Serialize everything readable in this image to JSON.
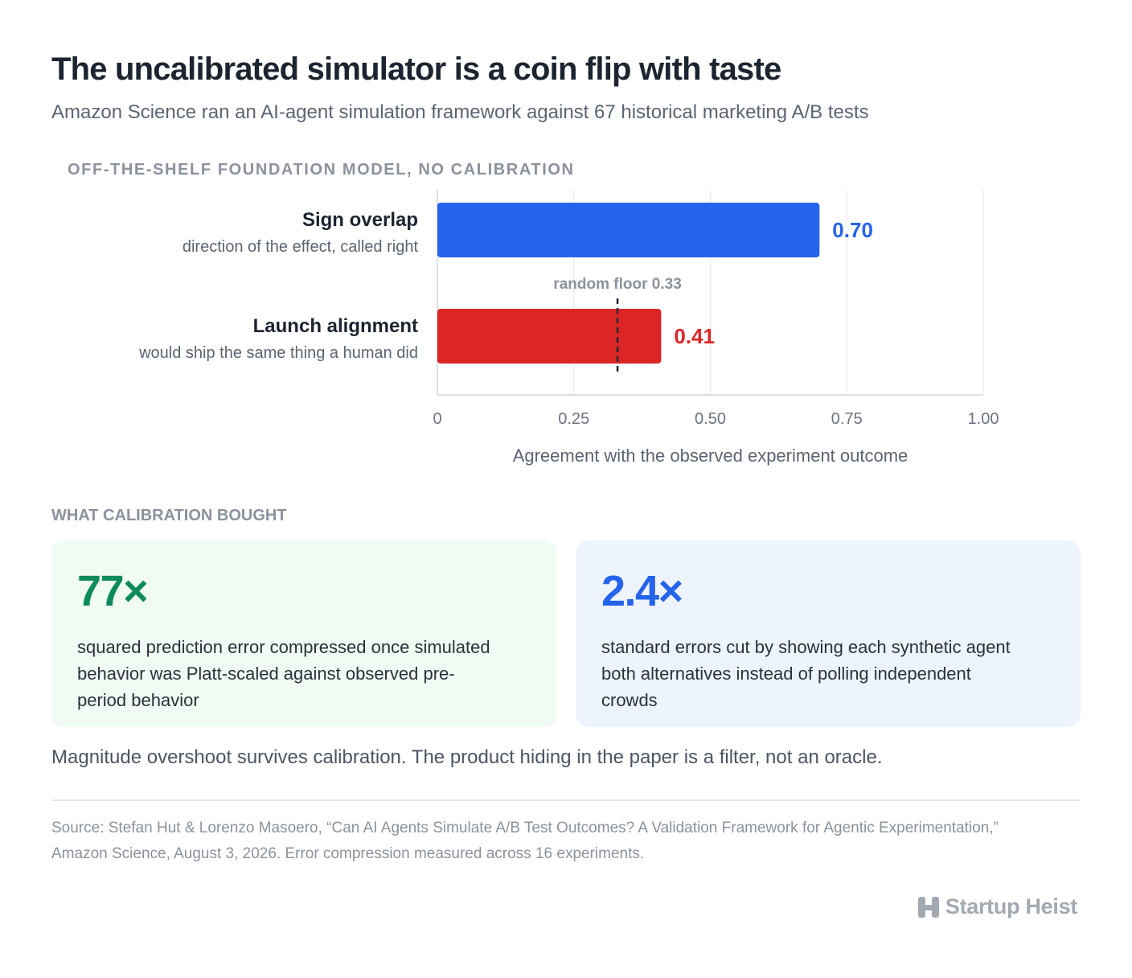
{
  "header": {
    "title": "The uncalibrated simulator is a coin flip with taste",
    "subtitle": "Amazon Science ran an AI-agent simulation framework against 67 historical marketing A/B tests",
    "chart_label": "OFF-THE-SHELF FOUNDATION MODEL, NO CALIBRATION"
  },
  "chart_data": {
    "type": "bar",
    "orientation": "horizontal",
    "categories": [
      "Sign overlap",
      "Launch alignment"
    ],
    "category_descriptions": [
      "direction of the effect, called right",
      "would ship the same thing a human did"
    ],
    "values": [
      0.7,
      0.41
    ],
    "value_labels": [
      "0.70",
      "0.41"
    ],
    "colors": [
      "#2563eb",
      "#dc2626"
    ],
    "xlim": [
      0,
      1
    ],
    "ticks": [
      0,
      0.25,
      0.5,
      0.75,
      1
    ],
    "tick_labels": [
      "0",
      "0.25",
      "0.50",
      "0.75",
      "1.00"
    ],
    "xlabel": "Agreement with the observed experiment outcome",
    "grid": true,
    "reference_line": {
      "value": 0.33,
      "label": "random floor 0.33",
      "style": "dashed"
    }
  },
  "calibration": {
    "section_label": "WHAT CALIBRATION BOUGHT",
    "cards": [
      {
        "stat": "77×",
        "description": "squared prediction error compressed once simulated behavior was Platt-scaled against observed pre-period behavior",
        "color": "#0d8a5c"
      },
      {
        "stat": "2.4×",
        "description": "standard errors cut by showing each synthetic agent both alternatives instead of polling independent crowds",
        "color": "#2563eb"
      }
    ]
  },
  "takeaway": "Magnitude overshoot survives calibration. The product hiding in the paper is a filter, not an oracle.",
  "source": "Source: Stefan Hut & Lorenzo Masoero, “Can AI Agents Simulate A/B Test Outcomes? A Validation Framework for Agentic Experimentation,” Amazon Science, August 3, 2026. Error compression measured across 16 experiments.",
  "brand": {
    "name": "Startup Heist",
    "icon": "startup-heist-logo-icon"
  }
}
